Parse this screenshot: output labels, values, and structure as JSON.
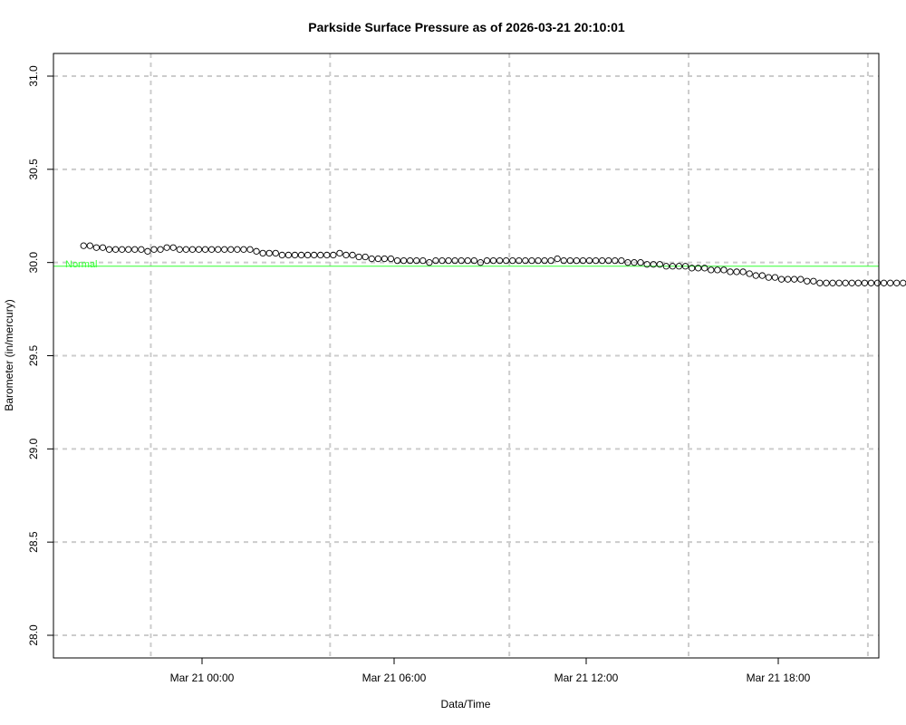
{
  "chart_data": {
    "type": "scatter",
    "title": "Parkside Surface Pressure as of 2026-03-21 20:10:01",
    "xlabel": "Data/Time",
    "ylabel": "Barometer (in/mercury)",
    "x_unit": "hours relative to Mar 21 00:00",
    "xlim": [
      -4.6,
      21.2
    ],
    "ylim": [
      28.0,
      31.0
    ],
    "x_ticks": [
      {
        "value": 0,
        "label": "Mar 21 00:00"
      },
      {
        "value": 6,
        "label": "Mar 21 06:00"
      },
      {
        "value": 12,
        "label": "Mar 21 12:00"
      },
      {
        "value": 18,
        "label": "Mar 21 18:00"
      }
    ],
    "y_ticks": [
      28.0,
      28.5,
      29.0,
      29.5,
      30.0,
      30.5,
      31.0
    ],
    "y_tick_labels": [
      "28.0",
      "28.5",
      "29.0",
      "29.5",
      "30.0",
      "30.5",
      "31.0"
    ],
    "grid_x": [
      -1.6,
      4,
      9.6,
      15.2,
      20.8
    ],
    "grid_y": [
      28.0,
      28.5,
      29.0,
      29.5,
      30.0,
      30.5,
      31.0
    ],
    "grid": true,
    "reference_line": {
      "label": "Normal",
      "value": 29.98,
      "color": "#33ff33"
    },
    "series": [
      {
        "color": "#000000",
        "marker": "open-circle",
        "points": [
          [
            -3.7,
            30.09
          ],
          [
            -3.5,
            30.09
          ],
          [
            -3.3,
            30.08
          ],
          [
            -3.1,
            30.08
          ],
          [
            -2.9,
            30.07
          ],
          [
            -2.7,
            30.07
          ],
          [
            -2.5,
            30.07
          ],
          [
            -2.3,
            30.07
          ],
          [
            -2.1,
            30.07
          ],
          [
            -1.9,
            30.07
          ],
          [
            -1.7,
            30.06
          ],
          [
            -1.5,
            30.07
          ],
          [
            -1.3,
            30.07
          ],
          [
            -1.1,
            30.08
          ],
          [
            -0.9,
            30.08
          ],
          [
            -0.7,
            30.07
          ],
          [
            -0.5,
            30.07
          ],
          [
            -0.3,
            30.07
          ],
          [
            -0.1,
            30.07
          ],
          [
            0.1,
            30.07
          ],
          [
            0.3,
            30.07
          ],
          [
            0.5,
            30.07
          ],
          [
            0.7,
            30.07
          ],
          [
            0.9,
            30.07
          ],
          [
            1.1,
            30.07
          ],
          [
            1.3,
            30.07
          ],
          [
            1.5,
            30.07
          ],
          [
            1.7,
            30.06
          ],
          [
            1.9,
            30.05
          ],
          [
            2.1,
            30.05
          ],
          [
            2.3,
            30.05
          ],
          [
            2.5,
            30.04
          ],
          [
            2.7,
            30.04
          ],
          [
            2.9,
            30.04
          ],
          [
            3.1,
            30.04
          ],
          [
            3.3,
            30.04
          ],
          [
            3.5,
            30.04
          ],
          [
            3.7,
            30.04
          ],
          [
            3.9,
            30.04
          ],
          [
            4.1,
            30.04
          ],
          [
            4.3,
            30.05
          ],
          [
            4.5,
            30.04
          ],
          [
            4.7,
            30.04
          ],
          [
            4.9,
            30.03
          ],
          [
            5.1,
            30.03
          ],
          [
            5.3,
            30.02
          ],
          [
            5.5,
            30.02
          ],
          [
            5.7,
            30.02
          ],
          [
            5.9,
            30.02
          ],
          [
            6.1,
            30.01
          ],
          [
            6.3,
            30.01
          ],
          [
            6.5,
            30.01
          ],
          [
            6.7,
            30.01
          ],
          [
            6.9,
            30.01
          ],
          [
            7.1,
            30.0
          ],
          [
            7.3,
            30.01
          ],
          [
            7.5,
            30.01
          ],
          [
            7.7,
            30.01
          ],
          [
            7.9,
            30.01
          ],
          [
            8.1,
            30.01
          ],
          [
            8.3,
            30.01
          ],
          [
            8.5,
            30.01
          ],
          [
            8.7,
            30.0
          ],
          [
            8.9,
            30.01
          ],
          [
            9.1,
            30.01
          ],
          [
            9.3,
            30.01
          ],
          [
            9.5,
            30.01
          ],
          [
            9.7,
            30.01
          ],
          [
            9.9,
            30.01
          ],
          [
            10.1,
            30.01
          ],
          [
            10.3,
            30.01
          ],
          [
            10.5,
            30.01
          ],
          [
            10.7,
            30.01
          ],
          [
            10.9,
            30.01
          ],
          [
            11.1,
            30.02
          ],
          [
            11.3,
            30.01
          ],
          [
            11.5,
            30.01
          ],
          [
            11.7,
            30.01
          ],
          [
            11.9,
            30.01
          ],
          [
            12.1,
            30.01
          ],
          [
            12.3,
            30.01
          ],
          [
            12.5,
            30.01
          ],
          [
            12.7,
            30.01
          ],
          [
            12.9,
            30.01
          ],
          [
            13.1,
            30.01
          ],
          [
            13.3,
            30.0
          ],
          [
            13.5,
            30.0
          ],
          [
            13.7,
            30.0
          ],
          [
            13.9,
            29.99
          ],
          [
            14.1,
            29.99
          ],
          [
            14.3,
            29.99
          ],
          [
            14.5,
            29.98
          ],
          [
            14.7,
            29.98
          ],
          [
            14.9,
            29.98
          ],
          [
            15.1,
            29.98
          ],
          [
            15.3,
            29.97
          ],
          [
            15.5,
            29.97
          ],
          [
            15.7,
            29.97
          ],
          [
            15.9,
            29.96
          ],
          [
            16.1,
            29.96
          ],
          [
            16.3,
            29.96
          ],
          [
            16.5,
            29.95
          ],
          [
            16.7,
            29.95
          ],
          [
            16.9,
            29.95
          ],
          [
            17.1,
            29.94
          ],
          [
            17.3,
            29.93
          ],
          [
            17.5,
            29.93
          ],
          [
            17.7,
            29.92
          ],
          [
            17.9,
            29.92
          ],
          [
            18.1,
            29.91
          ],
          [
            18.3,
            29.91
          ],
          [
            18.5,
            29.91
          ],
          [
            18.7,
            29.91
          ],
          [
            18.9,
            29.9
          ],
          [
            19.1,
            29.9
          ],
          [
            19.3,
            29.89
          ],
          [
            19.5,
            29.89
          ],
          [
            19.7,
            29.89
          ],
          [
            19.9,
            29.89
          ],
          [
            20.1,
            29.89
          ],
          [
            20.3,
            29.89
          ],
          [
            20.5,
            29.89
          ],
          [
            20.7,
            29.89
          ],
          [
            20.9,
            29.89
          ],
          [
            21.1,
            29.89
          ],
          [
            21.3,
            29.89
          ],
          [
            21.5,
            29.89
          ],
          [
            21.7,
            29.89
          ],
          [
            21.9,
            29.89
          ],
          [
            22.1,
            29.89
          ],
          [
            22.3,
            29.9
          ],
          [
            22.5,
            29.9
          ],
          [
            22.7,
            29.9
          ],
          [
            22.9,
            29.9
          ],
          [
            23.1,
            29.9
          ],
          [
            23.3,
            29.91
          ],
          [
            23.5,
            29.91
          ],
          [
            23.7,
            29.91
          ],
          [
            23.9,
            29.91
          ]
        ]
      }
    ]
  }
}
